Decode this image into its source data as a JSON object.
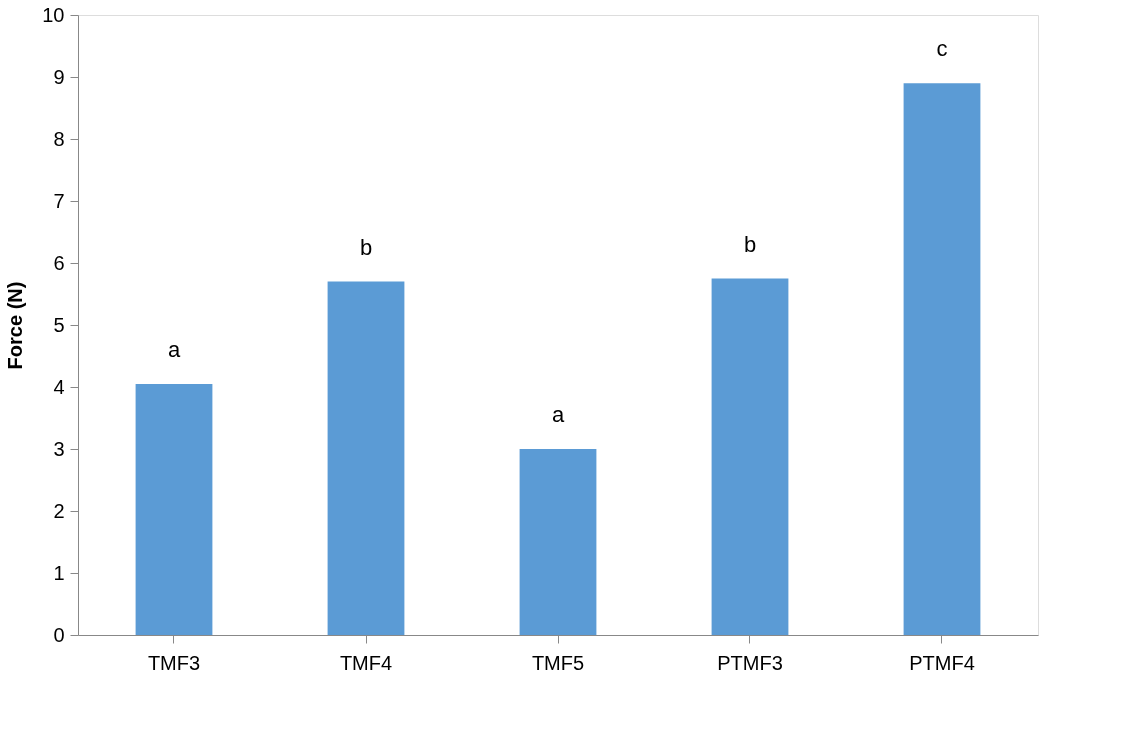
{
  "chart_data": {
    "type": "bar",
    "ylabel": "Force (N)",
    "categories": [
      "TMF3",
      "TMF4",
      "TMF5",
      "PTMF3",
      "PTMF4"
    ],
    "values": [
      4.05,
      5.7,
      3.0,
      5.75,
      8.9
    ],
    "color": "#5b9bd5",
    "ylim": [
      0,
      10
    ],
    "yticks": [
      0,
      1,
      2,
      3,
      4,
      5,
      6,
      7,
      8,
      9,
      10
    ],
    "grid": false,
    "annotations": [
      {
        "text": "a",
        "x": "TMF3",
        "y": 4.05
      },
      {
        "text": "b",
        "x": "TMF4",
        "y": 5.7
      },
      {
        "text": "a",
        "x": "TMF5",
        "y": 3.0
      },
      {
        "text": "b",
        "x": "PTMF3",
        "y": 5.75
      },
      {
        "text": "c",
        "x": "PTMF4",
        "y": 8.9
      }
    ]
  }
}
